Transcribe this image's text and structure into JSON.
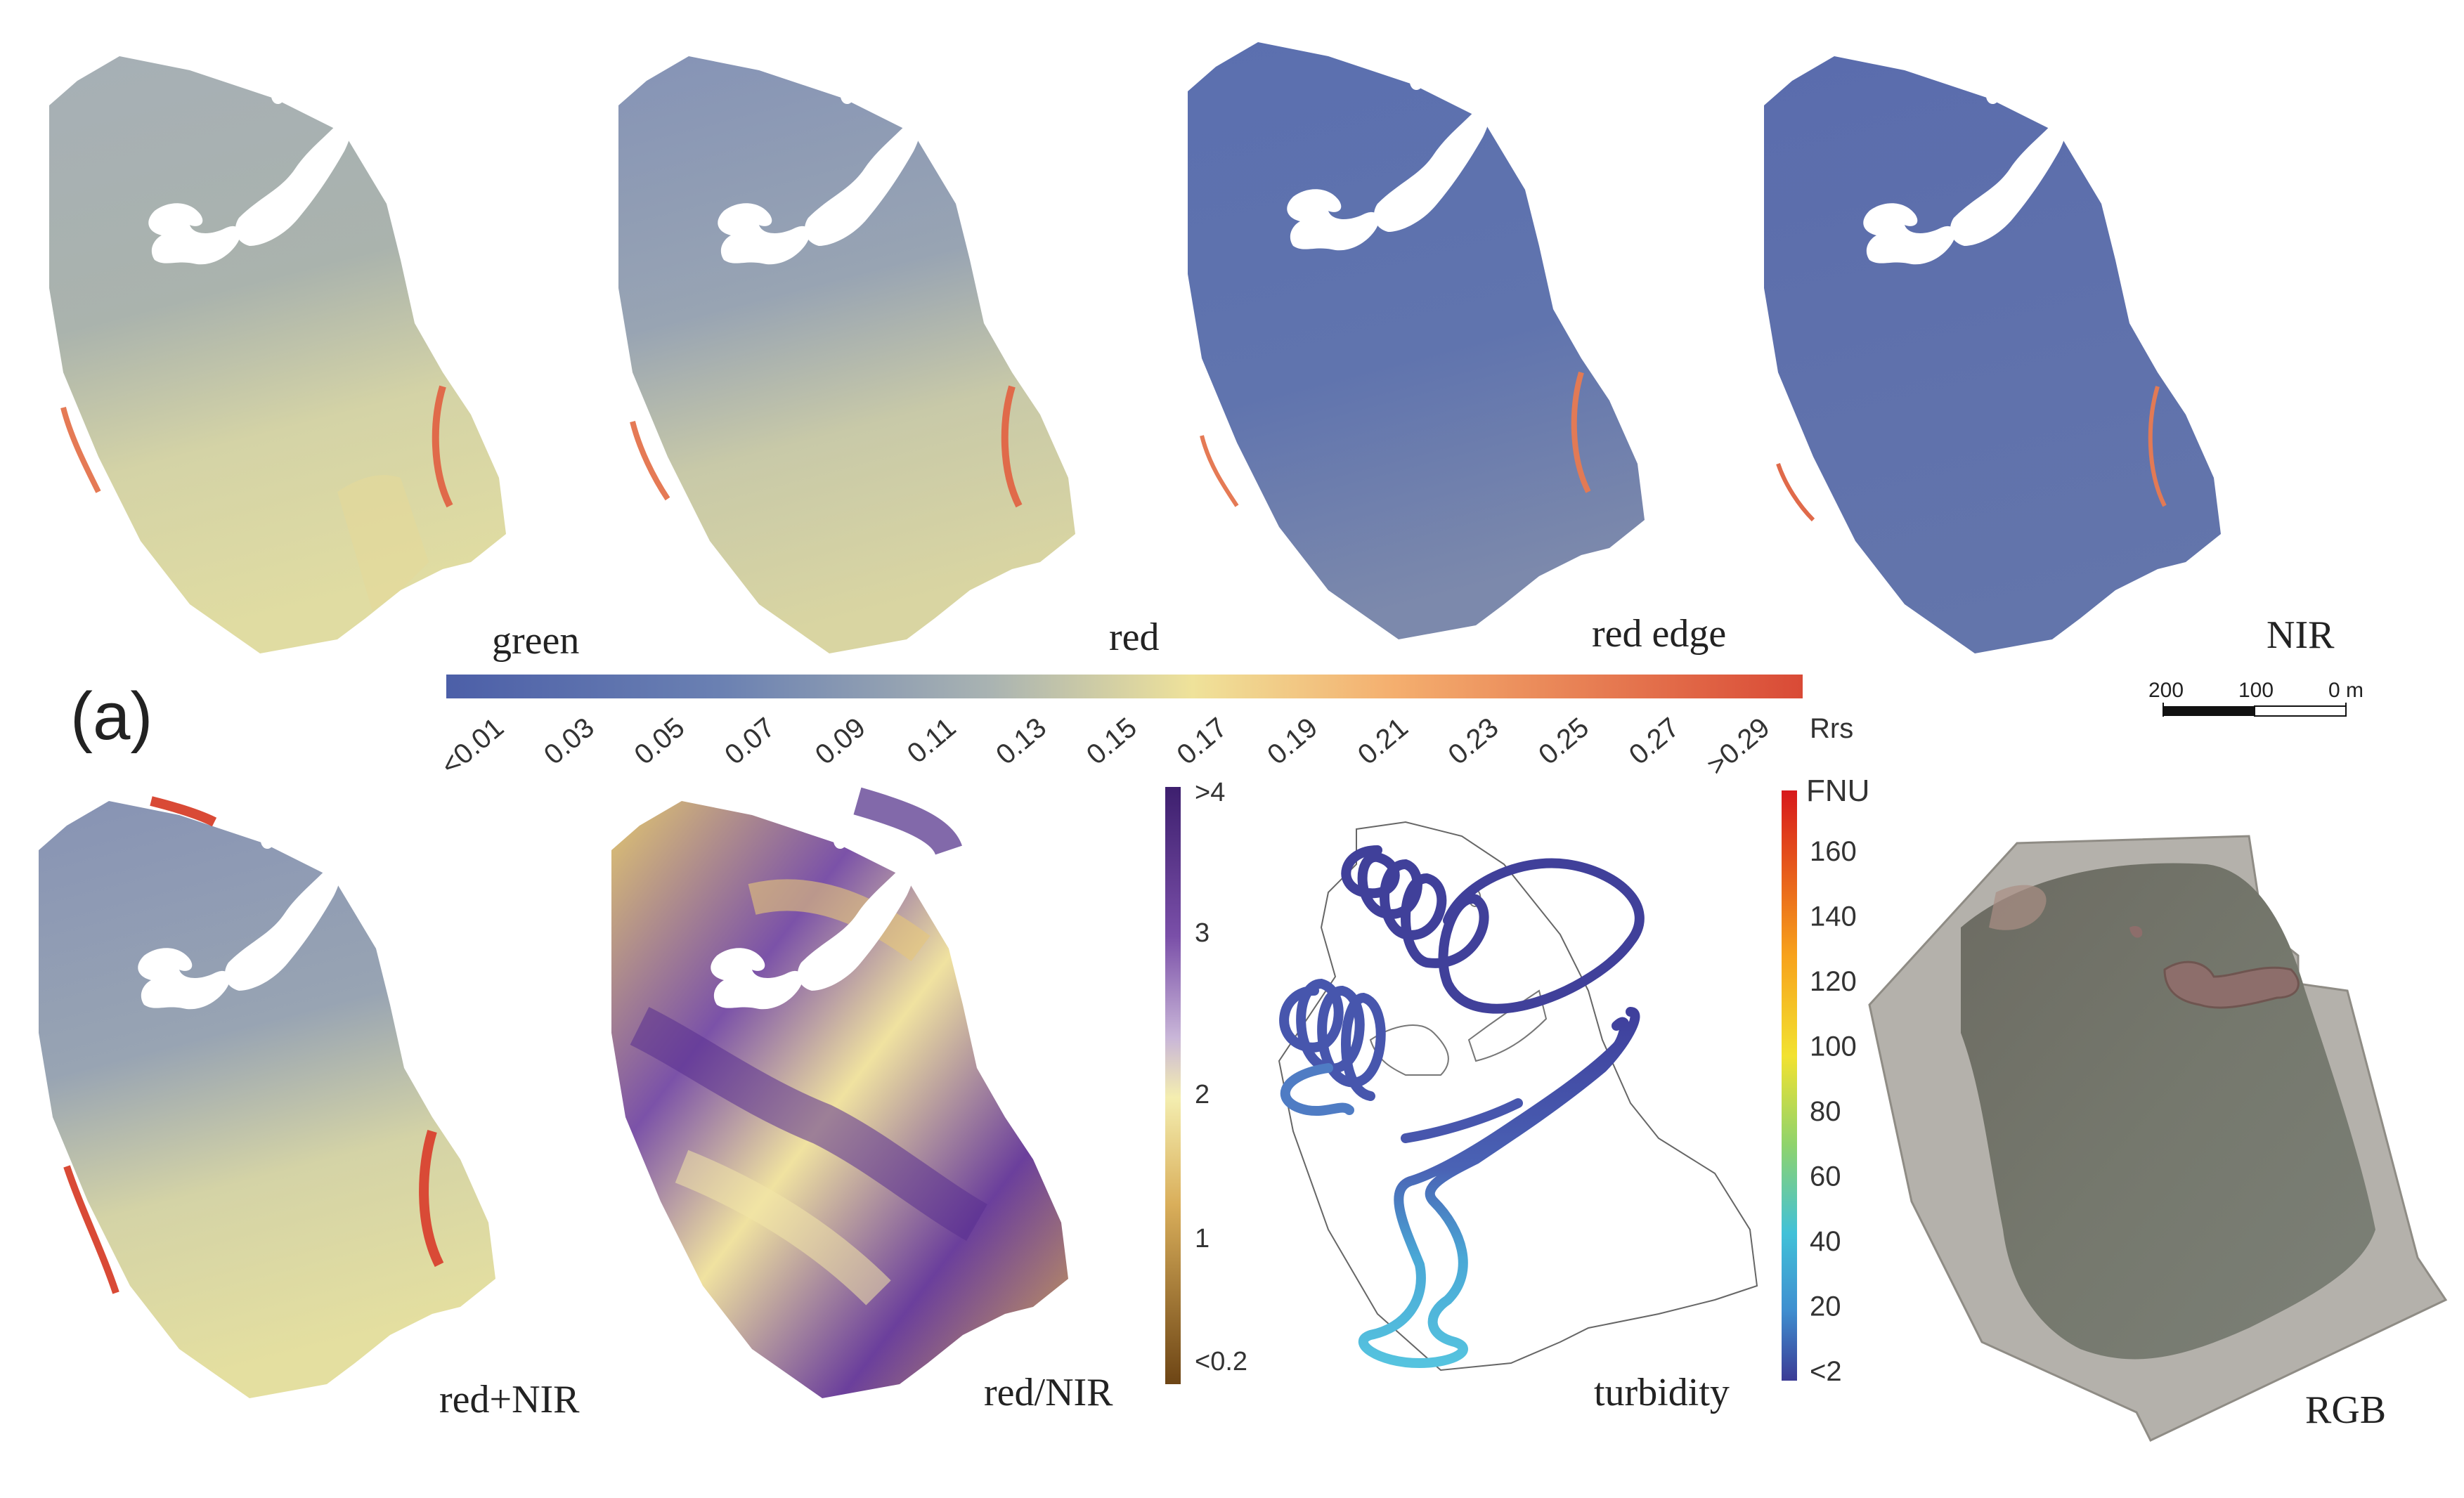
{
  "figure_letter": "(a)",
  "panels": {
    "green": "green",
    "red": "red",
    "red_edge": "red edge",
    "nir": "NIR",
    "red_plus_nir": "red+NIR",
    "red_over_nir": "red/NIR",
    "turbidity": "turbidity",
    "rgb": "RGB"
  },
  "rrs_colorbar": {
    "unit": "Rrs",
    "ticks": [
      "<0.01",
      "0.03",
      "0.05",
      "0.07",
      "0.09",
      "0.11",
      "0.13",
      "0.15",
      "0.17",
      "0.19",
      "0.21",
      "0.23",
      "0.25",
      "0.27",
      ">0.29"
    ],
    "colors": [
      "#4c5fa8",
      "#5268ab",
      "#5a72ae",
      "#6a80b2",
      "#7d90b5",
      "#92a2b6",
      "#a9b3b2",
      "#c3c7a8",
      "#dcd89e",
      "#efe29a",
      "#f7cd86",
      "#f4ae6e",
      "#ee8f5a",
      "#e56f48",
      "#d94a36"
    ]
  },
  "ratio_colorbar": {
    "ticks": [
      ">4",
      "3",
      "2",
      "1",
      "<0.2"
    ],
    "top_color": "#3d1f6e",
    "mid_color": "#f4eeb0",
    "bottom_color": "#6d4515"
  },
  "turbidity_colorbar": {
    "unit": "FNU",
    "ticks": [
      "160",
      "140",
      "120",
      "100",
      "80",
      "60",
      "40",
      "20",
      "<2"
    ],
    "top_color": "#d7191c",
    "bottom_color": "#3b3b95"
  },
  "scale_bar": {
    "labels": [
      "200",
      "100",
      "0 m"
    ]
  }
}
